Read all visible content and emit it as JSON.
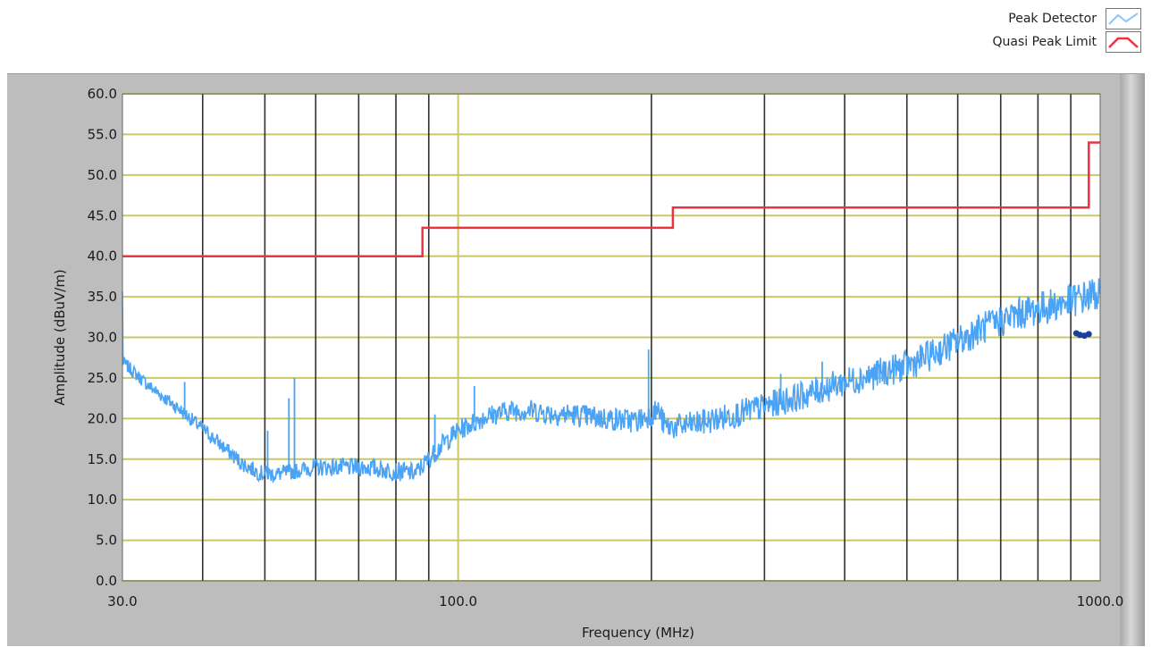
{
  "legend": {
    "items": [
      {
        "label": "Peak Detector",
        "color": "#4aa3f5",
        "icon": "light-blue-line-swatch-icon"
      },
      {
        "label": "Quasi Peak Limit",
        "color": "#ee3340",
        "icon": "red-line-swatch-icon"
      }
    ]
  },
  "chart_data": {
    "type": "line",
    "xlabel": "Frequency (MHz)",
    "ylabel": "Amplitude (dBuV/m)",
    "xscale": "log",
    "xlim": [
      30,
      1000
    ],
    "ylim": [
      0,
      60
    ],
    "yticks": [
      "0.0",
      "5.0",
      "10.0",
      "15.0",
      "20.0",
      "25.0",
      "30.0",
      "35.0",
      "40.0",
      "45.0",
      "50.0",
      "55.0",
      "60.0"
    ],
    "xticks": [
      "30.0",
      "100.0",
      "1000.0"
    ],
    "grid": true,
    "legend_position": "top-right",
    "background_color": "#ffffff",
    "grid_color_major": "#c8c864",
    "grid_color_minor": "#303030",
    "series": [
      {
        "name": "Peak Detector",
        "color": "#4aa3f5",
        "x": [
          30,
          33,
          37,
          41,
          46,
          49,
          52,
          56,
          60,
          65,
          72,
          80,
          86,
          90,
          95,
          100,
          110,
          120,
          130,
          140,
          150,
          170,
          190,
          205,
          210,
          220,
          240,
          270,
          300,
          350,
          400,
          450,
          500,
          550,
          600,
          650,
          700,
          750,
          800,
          850,
          900,
          950,
          1000
        ],
        "values": [
          27,
          24,
          21,
          18,
          14.5,
          13.3,
          13.1,
          13.6,
          14,
          14,
          14,
          13.5,
          13.3,
          15,
          17,
          18.5,
          20.2,
          21,
          21,
          20.6,
          20.5,
          20,
          19.7,
          21,
          19,
          19,
          19.5,
          20.5,
          21.5,
          23,
          24.5,
          25.5,
          26.5,
          28,
          29.5,
          31,
          32,
          33,
          33.5,
          34,
          34.5,
          35,
          35.5
        ]
      },
      {
        "name": "Quasi Peak Limit",
        "color": "#ee3340",
        "x": [
          30,
          88,
          88,
          216,
          216,
          960,
          960,
          1000
        ],
        "values": [
          40,
          40,
          43.5,
          43.5,
          46,
          46,
          54,
          54
        ]
      },
      {
        "name": "",
        "color": "#1a3e9e",
        "x": [
          918,
          930,
          945,
          960
        ],
        "values": [
          30.5,
          30.3,
          30.2,
          30.4
        ]
      }
    ],
    "spikes": [
      {
        "x": 37.5,
        "value": 24.5
      },
      {
        "x": 50.5,
        "value": 18.5
      },
      {
        "x": 54.5,
        "value": 22.5
      },
      {
        "x": 55.6,
        "value": 25
      },
      {
        "x": 92,
        "value": 20.5
      },
      {
        "x": 106,
        "value": 24
      },
      {
        "x": 198,
        "value": 28.5
      },
      {
        "x": 318,
        "value": 25.5
      },
      {
        "x": 369,
        "value": 27
      }
    ]
  }
}
